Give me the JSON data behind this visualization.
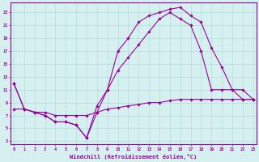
{
  "xlabel": "Windchill (Refroidissement éolien,°C)",
  "bg_color": "#d6f0f0",
  "line_color": "#990099",
  "grid_color": "#b0dede",
  "xticks": [
    0,
    1,
    2,
    3,
    4,
    5,
    6,
    7,
    8,
    9,
    10,
    11,
    12,
    13,
    14,
    15,
    16,
    17,
    18,
    19,
    20,
    21,
    22,
    23
  ],
  "yticks": [
    3,
    5,
    7,
    9,
    11,
    13,
    15,
    17,
    19,
    21,
    23
  ],
  "xlim": [
    -0.3,
    23.3
  ],
  "ylim": [
    2.5,
    24.5
  ],
  "line1_x": [
    0,
    1,
    2,
    3,
    4,
    5,
    6,
    7,
    8,
    9,
    10,
    11,
    12,
    13,
    14,
    15,
    16,
    17,
    18,
    19,
    20,
    21,
    22,
    23
  ],
  "line1_y": [
    12,
    8,
    7.5,
    7,
    6,
    6,
    5.5,
    3.5,
    7.5,
    11,
    17,
    19,
    21.5,
    22.5,
    23,
    23.5,
    23.8,
    22.5,
    21.5,
    17.5,
    14.5,
    11,
    11,
    9.5
  ],
  "line2_x": [
    0,
    1,
    2,
    3,
    4,
    5,
    6,
    7,
    8,
    9,
    10,
    11,
    12,
    13,
    14,
    15,
    16,
    17,
    18,
    19,
    20,
    21,
    22,
    23
  ],
  "line2_y": [
    12,
    8,
    7.5,
    7,
    6,
    6,
    5.5,
    3.5,
    8.5,
    11,
    14,
    16,
    18,
    20,
    22,
    23,
    22,
    21,
    17,
    11,
    11,
    11,
    9.5,
    9.5
  ],
  "line3_x": [
    0,
    1,
    2,
    3,
    4,
    5,
    6,
    7,
    8,
    9,
    10,
    11,
    12,
    13,
    14,
    15,
    16,
    17,
    18,
    19,
    20,
    21,
    22,
    23
  ],
  "line3_y": [
    8,
    8,
    7.5,
    7.5,
    7,
    7,
    7,
    7,
    7.5,
    8,
    8.2,
    8.5,
    8.7,
    9,
    9,
    9.3,
    9.5,
    9.5,
    9.5,
    9.5,
    9.5,
    9.5,
    9.5,
    9.5
  ]
}
